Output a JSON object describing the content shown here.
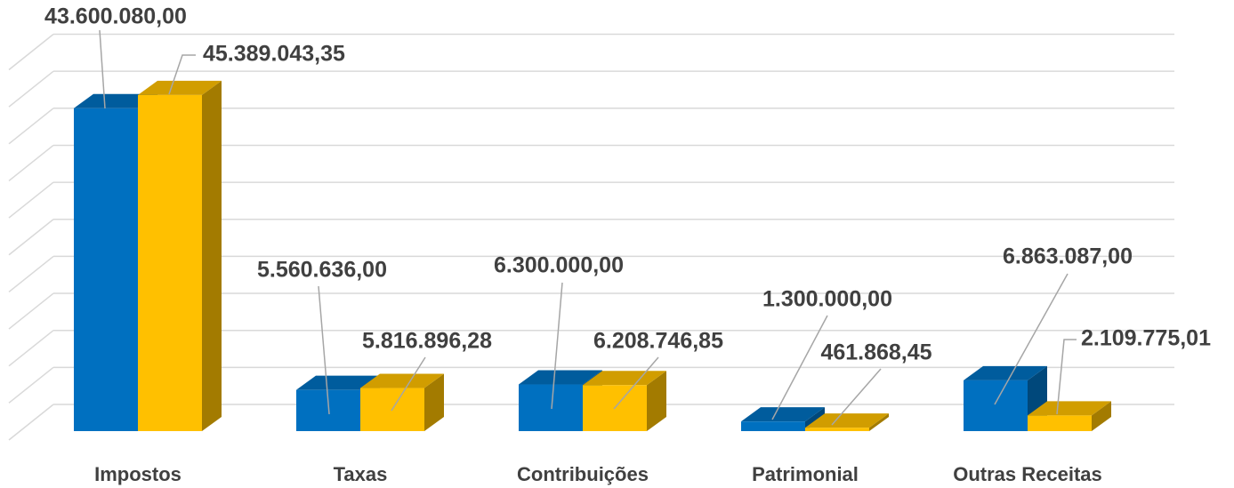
{
  "chart_data": {
    "type": "bar3d",
    "categories": [
      "Impostos",
      "Taxas",
      "Contribuições",
      "Patrimonial",
      "Outras Receitas"
    ],
    "series": [
      {
        "color": "#0070c0",
        "values": [
          43600080.0,
          5560636.0,
          6300000.0,
          1300000.0,
          6863087.0
        ],
        "value_labels": [
          "43.600.080,00",
          "5.560.636,00",
          "6.300.000,00",
          "1.300.000,00",
          "6.863.087,00"
        ]
      },
      {
        "color": "#ffc000",
        "values": [
          45389043.35,
          5816896.28,
          6208746.85,
          461868.45,
          2109775.01
        ],
        "value_labels": [
          "45.389.043,35",
          "5.816.896,28",
          "6.208.746,85",
          "461.868,45",
          "2.109.775,01"
        ]
      }
    ],
    "ylim": [
      0,
      50000000
    ],
    "yticks": [
      0,
      5000000,
      10000000,
      15000000,
      20000000,
      25000000,
      30000000,
      35000000,
      40000000,
      45000000,
      50000000
    ],
    "grid": true
  }
}
